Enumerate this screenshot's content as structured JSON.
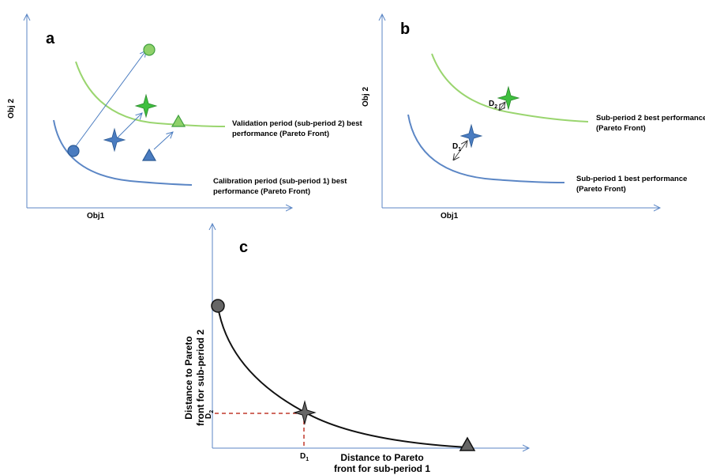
{
  "colors": {
    "blue": "#4a7cc0",
    "green": "#8fd16a",
    "greenStar": "#3fbf3f",
    "axis": "#5b86c5",
    "red": "#c0392b",
    "gray": "#666666"
  },
  "panel_a": {
    "label": "a",
    "xlabel": "Obj1",
    "ylabel": "Obj 2",
    "validation_line1": "Validation period (sub-period 2) best",
    "validation_line2": "performance (Pareto Front)",
    "calibration_line1": "Calibration period (sub-period 1) best",
    "calibration_line2": "performance (Pareto Front)"
  },
  "panel_b": {
    "label": "b",
    "xlabel": "Obj1",
    "ylabel": "Obj 2",
    "d1_main": "D",
    "d1_sub": "1",
    "d2_main": "D",
    "d2_sub": "2",
    "sub2_line1": "Sub-period 2 best performance",
    "sub2_line2": "(Pareto Front)",
    "sub1_line1": "Sub-period 1 best performance",
    "sub1_line2": "(Pareto Front)"
  },
  "panel_c": {
    "label": "c",
    "ylabel_line1": "Distance to Pareto",
    "ylabel_line2": "front for sub-period 2",
    "xlabel_line1": "Distance to Pareto",
    "xlabel_line2": "front for sub-period 1",
    "d1_main": "D",
    "d1_sub": "1",
    "d2_main": "D",
    "d2_sub": "2"
  }
}
